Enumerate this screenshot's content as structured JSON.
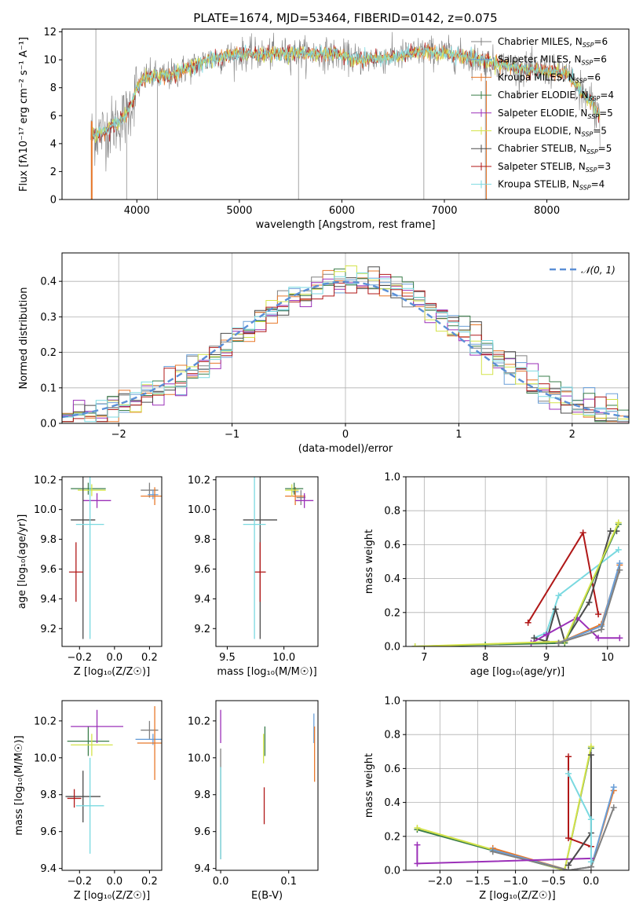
{
  "figure_title": "PLATE=1674, MJD=53464, FIBERID=0142, z=0.075",
  "models": [
    {
      "name": "Chabrier MILES",
      "nssp": "6",
      "color": "#808080"
    },
    {
      "name": "Salpeter MILES",
      "nssp": "6",
      "color": "#6a9fd8"
    },
    {
      "name": "Kroupa MILES",
      "nssp": "6",
      "color": "#e8782a"
    },
    {
      "name": "Chabrier ELODIE",
      "nssp": "4",
      "color": "#3a7d4a"
    },
    {
      "name": "Salpeter ELODIE",
      "nssp": "5",
      "color": "#9b30b8"
    },
    {
      "name": "Kroupa ELODIE",
      "nssp": "5",
      "color": "#d4e34a"
    },
    {
      "name": "Chabrier STELIB",
      "nssp": "5",
      "color": "#4a4a4a"
    },
    {
      "name": "Salpeter STELIB",
      "nssp": "3",
      "color": "#b01818"
    },
    {
      "name": "Kroupa STELIB",
      "nssp": "4",
      "color": "#7ad9e0"
    }
  ],
  "legend_nssp_prefix": "N",
  "legend_nssp_sub": "SSP",
  "chart_data": [
    {
      "id": "spectrum",
      "type": "line",
      "xlabel": "wavelength [Angstrom, rest frame]",
      "ylabel": "Flux [fλ10⁻¹⁷ erg cm⁻² s⁻¹ A⁻¹]",
      "xlim": [
        3270,
        8800
      ],
      "ylim": [
        0,
        12.2
      ],
      "xticks": [
        4000,
        5000,
        6000,
        7000,
        8000
      ],
      "yticks": [
        0,
        2,
        4,
        6,
        8,
        10,
        12
      ],
      "grid": false,
      "legend": "right",
      "continuum_x": [
        3550,
        3700,
        3900,
        4000,
        4100,
        4300,
        4500,
        4700,
        5000,
        5300,
        5600,
        5900,
        6200,
        6500,
        6800,
        7000,
        7200,
        7400,
        7600,
        7800,
        8000,
        8200,
        8350,
        8450,
        8520
      ],
      "continuum_y": [
        4.6,
        4.9,
        6.0,
        8.0,
        8.8,
        8.8,
        9.4,
        10.0,
        10.4,
        10.4,
        10.5,
        10.4,
        10.0,
        10.2,
        10.6,
        10.5,
        10.2,
        9.9,
        9.6,
        9.3,
        9.2,
        9.0,
        7.5,
        7.0,
        5.8
      ]
    },
    {
      "id": "residuals",
      "type": "histogram",
      "xlabel": "(data-model)/error",
      "ylabel": "Normed distribution",
      "xlim": [
        -2.5,
        2.5
      ],
      "ylim": [
        0,
        0.48
      ],
      "xticks": [
        -2,
        -1,
        0,
        1,
        2
      ],
      "yticks": [
        0.0,
        0.1,
        0.2,
        0.3,
        0.4
      ],
      "grid": true,
      "legend": "top-right",
      "reference_curve": "N(0,1)",
      "reference_label": "𝒩(0, 1)",
      "bin_edges_from": -2.5,
      "bin_width": 0.1
    },
    {
      "id": "age_vs_Z",
      "type": "scatter",
      "xlabel": "Z [log₁₀(Z/Z☉)]",
      "ylabel": "age  [log₁₀(age/yr)]",
      "xlim": [
        -0.3,
        0.27
      ],
      "ylim": [
        9.08,
        10.22
      ],
      "xticks": [
        -0.2,
        0.0,
        0.2
      ],
      "yticks": [
        9.2,
        9.4,
        9.6,
        9.8,
        10.0,
        10.2
      ],
      "points": [
        {
          "model": 0,
          "x": 0.2,
          "y": 10.13,
          "xerr": 0.05,
          "yerr": 0.05
        },
        {
          "model": 1,
          "x": 0.22,
          "y": 10.1,
          "xerr": 0.03,
          "yerr": 0.03
        },
        {
          "model": 2,
          "x": 0.23,
          "y": 10.09,
          "xerr": 0.08,
          "yerr": 0.06
        },
        {
          "model": 3,
          "x": -0.15,
          "y": 10.14,
          "xerr": 0.1,
          "yerr": 0.04
        },
        {
          "model": 4,
          "x": -0.1,
          "y": 10.06,
          "xerr": 0.08,
          "yerr": 0.05
        },
        {
          "model": 5,
          "x": -0.13,
          "y": 10.13,
          "xerr": 0.08,
          "yerr": 0.04
        },
        {
          "model": 6,
          "x": -0.18,
          "y": 9.93,
          "xerr": 0.07,
          "yerr": 0.8
        },
        {
          "model": 7,
          "x": -0.22,
          "y": 9.58,
          "xerr": 0.04,
          "yerr": 0.2
        },
        {
          "model": 8,
          "x": -0.14,
          "y": 9.9,
          "xerr": 0.08,
          "yerr": 0.77
        }
      ]
    },
    {
      "id": "age_vs_mass",
      "type": "scatter",
      "xlabel": "mass [log₁₀(M/M☉)]",
      "ylabel": "",
      "xlim": [
        9.4,
        10.3
      ],
      "ylim": [
        9.08,
        10.22
      ],
      "xticks": [
        9.5,
        10.0
      ],
      "yticks": [
        9.2,
        9.4,
        9.6,
        9.8,
        10.0,
        10.2
      ],
      "points": [
        {
          "model": 0,
          "x": 10.15,
          "y": 10.08,
          "xerr": 0.04,
          "yerr": 0.05
        },
        {
          "model": 1,
          "x": 10.1,
          "y": 10.12,
          "xerr": 0.03,
          "yerr": 0.03
        },
        {
          "model": 2,
          "x": 10.1,
          "y": 10.09,
          "xerr": 0.09,
          "yerr": 0.06
        },
        {
          "model": 3,
          "x": 10.09,
          "y": 10.14,
          "xerr": 0.08,
          "yerr": 0.04
        },
        {
          "model": 4,
          "x": 10.18,
          "y": 10.06,
          "xerr": 0.08,
          "yerr": 0.05
        },
        {
          "model": 5,
          "x": 10.07,
          "y": 10.13,
          "xerr": 0.06,
          "yerr": 0.04
        },
        {
          "model": 6,
          "x": 9.79,
          "y": 9.93,
          "xerr": 0.15,
          "yerr": 0.8
        },
        {
          "model": 7,
          "x": 9.79,
          "y": 9.58,
          "xerr": 0.05,
          "yerr": 0.2
        },
        {
          "model": 8,
          "x": 9.74,
          "y": 9.9,
          "xerr": 0.1,
          "yerr": 0.77
        }
      ]
    },
    {
      "id": "weight_vs_age",
      "type": "line",
      "xlabel": "age  [log₁₀(age/yr)]",
      "ylabel": "mass weight",
      "xlim": [
        6.7,
        10.35
      ],
      "ylim": [
        0,
        1.0
      ],
      "xticks": [
        7,
        8,
        9,
        10
      ],
      "yticks": [
        0.0,
        0.2,
        0.4,
        0.6,
        0.8,
        1.0
      ],
      "grid": true,
      "series": [
        {
          "model": 8,
          "x": [
            8.8,
            9.0,
            9.2,
            10.18
          ],
          "y": [
            0.05,
            0.08,
            0.3,
            0.57
          ]
        },
        {
          "model": 7,
          "x": [
            8.7,
            9.6,
            9.85
          ],
          "y": [
            0.14,
            0.67,
            0.19
          ]
        },
        {
          "model": 6,
          "x": [
            8.8,
            9.0,
            9.15,
            9.3,
            9.7,
            10.05,
            10.15
          ],
          "y": [
            0.05,
            0.03,
            0.22,
            0.03,
            0.26,
            0.68,
            0.68
          ]
        },
        {
          "model": 4,
          "x": [
            8.75,
            9.0,
            9.5,
            9.85,
            10.2
          ],
          "y": [
            0.02,
            0.07,
            0.17,
            0.05,
            0.05
          ]
        },
        {
          "model": 3,
          "x": [
            6.85,
            8.0,
            9.3,
            10.18
          ],
          "y": [
            0.0,
            0.01,
            0.02,
            0.72
          ]
        },
        {
          "model": 5,
          "x": [
            6.85,
            9.3,
            10.18
          ],
          "y": [
            0.0,
            0.03,
            0.73
          ]
        },
        {
          "model": 2,
          "x": [
            9.2,
            9.9,
            10.2
          ],
          "y": [
            0.02,
            0.13,
            0.48
          ]
        },
        {
          "model": 1,
          "x": [
            9.2,
            9.9,
            10.2
          ],
          "y": [
            0.02,
            0.12,
            0.49
          ]
        },
        {
          "model": 0,
          "x": [
            9.2,
            9.9,
            10.2
          ],
          "y": [
            0.02,
            0.1,
            0.45
          ]
        }
      ]
    },
    {
      "id": "mass_vs_Z",
      "type": "scatter",
      "xlabel": "Z [log₁₀(Z/Z☉)]",
      "ylabel": "mass [log₁₀(M/M☉)]",
      "xlim": [
        -0.3,
        0.27
      ],
      "ylim": [
        9.39,
        10.31
      ],
      "xticks": [
        -0.2,
        0.0,
        0.2
      ],
      "yticks": [
        9.4,
        9.6,
        9.8,
        10.0,
        10.2
      ],
      "points": [
        {
          "model": 0,
          "x": 0.2,
          "y": 10.15,
          "xerr": 0.05,
          "yerr": 0.05
        },
        {
          "model": 1,
          "x": 0.22,
          "y": 10.1,
          "xerr": 0.1,
          "yerr": 0.03
        },
        {
          "model": 2,
          "x": 0.23,
          "y": 10.08,
          "xerr": 0.1,
          "yerr": 0.2
        },
        {
          "model": 3,
          "x": -0.15,
          "y": 10.09,
          "xerr": 0.12,
          "yerr": 0.08
        },
        {
          "model": 4,
          "x": -0.1,
          "y": 10.17,
          "xerr": 0.15,
          "yerr": 0.09
        },
        {
          "model": 5,
          "x": -0.13,
          "y": 10.07,
          "xerr": 0.12,
          "yerr": 0.06
        },
        {
          "model": 6,
          "x": -0.18,
          "y": 9.79,
          "xerr": 0.1,
          "yerr": 0.14
        },
        {
          "model": 7,
          "x": -0.23,
          "y": 9.78,
          "xerr": 0.04,
          "yerr": 0.05
        },
        {
          "model": 8,
          "x": -0.14,
          "y": 9.74,
          "xerr": 0.08,
          "yerr": 0.26
        }
      ]
    },
    {
      "id": "mass_vs_ebv",
      "type": "scatter",
      "xlabel": "E(B-V)",
      "ylabel": "",
      "xlim": [
        -0.007,
        0.143
      ],
      "ylim": [
        9.39,
        10.31
      ],
      "xticks": [
        0.0,
        0.1
      ],
      "yticks": [
        9.4,
        9.6,
        9.8,
        10.0,
        10.2
      ],
      "points": [
        {
          "model": 0,
          "x": 0.0,
          "y": 9.75,
          "xerr": 0,
          "yerr": 0.3
        },
        {
          "model": 4,
          "x": 0.0,
          "y": 10.17,
          "xerr": 0,
          "yerr": 0.09
        },
        {
          "model": 8,
          "x": 0.0,
          "y": 9.7,
          "xerr": 0,
          "yerr": 0.25
        },
        {
          "model": 3,
          "x": 0.065,
          "y": 10.09,
          "xerr": 0,
          "yerr": 0.08
        },
        {
          "model": 5,
          "x": 0.063,
          "y": 10.05,
          "xerr": 0,
          "yerr": 0.08
        },
        {
          "model": 7,
          "x": 0.064,
          "y": 9.74,
          "xerr": 0,
          "yerr": 0.1
        },
        {
          "model": 1,
          "x": 0.137,
          "y": 10.16,
          "xerr": 0,
          "yerr": 0.08
        },
        {
          "model": 2,
          "x": 0.138,
          "y": 10.02,
          "xerr": 0,
          "yerr": 0.15
        }
      ]
    },
    {
      "id": "weight_vs_Z",
      "type": "line",
      "xlabel": "Z [log₁₀(Z/Z☉)]",
      "ylabel": "mass weight",
      "xlim": [
        -2.45,
        0.5
      ],
      "ylim": [
        0,
        1.0
      ],
      "xticks": [
        -2.0,
        -1.5,
        -1.0,
        -0.5,
        0.0
      ],
      "yticks": [
        0.0,
        0.2,
        0.4,
        0.6,
        0.8,
        1.0
      ],
      "grid": true,
      "series": [
        {
          "model": 3,
          "x": [
            -2.3,
            -0.35,
            0.0
          ],
          "y": [
            0.24,
            0.0,
            0.72
          ]
        },
        {
          "model": 5,
          "x": [
            -2.3,
            -0.35,
            0.0
          ],
          "y": [
            0.25,
            0.0,
            0.73
          ]
        },
        {
          "model": 2,
          "x": [
            -1.3,
            -0.3,
            0.0,
            0.3
          ],
          "y": [
            0.13,
            0.0,
            0.02,
            0.47
          ]
        },
        {
          "model": 1,
          "x": [
            -1.3,
            -0.3,
            0.0,
            0.3
          ],
          "y": [
            0.12,
            0.0,
            0.02,
            0.49
          ]
        },
        {
          "model": 0,
          "x": [
            -1.3,
            -0.3,
            0.0,
            0.3
          ],
          "y": [
            0.11,
            0.0,
            0.02,
            0.37
          ]
        },
        {
          "model": 4,
          "x": [
            -2.3,
            -2.3,
            0.0
          ],
          "y": [
            0.15,
            0.04,
            0.07
          ]
        },
        {
          "model": 7,
          "x": [
            -0.3,
            -0.3,
            0.0
          ],
          "y": [
            0.67,
            0.19,
            0.14
          ]
        },
        {
          "model": 6,
          "x": [
            -0.3,
            0.0,
            0.0
          ],
          "y": [
            0.03,
            0.22,
            0.68
          ]
        },
        {
          "model": 8,
          "x": [
            -0.3,
            0.0,
            0.0
          ],
          "y": [
            0.57,
            0.3,
            0.05
          ]
        }
      ]
    }
  ]
}
